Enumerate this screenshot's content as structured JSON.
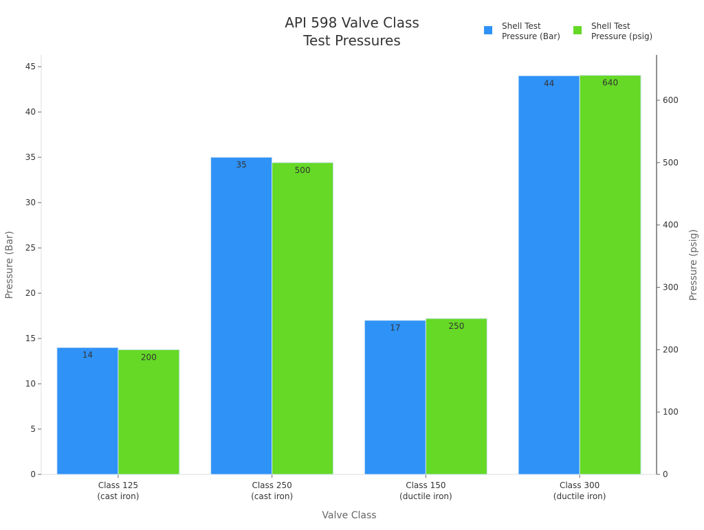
{
  "chart_data": {
    "type": "bar",
    "title": [
      "API 598 Valve Class",
      "Test Pressures"
    ],
    "xlabel": "Valve Class",
    "ylabel": "Pressure (Bar)",
    "y2label": "Pressure (psig)",
    "categories": [
      [
        "Class 125",
        "(cast iron)"
      ],
      [
        "Class 250",
        "(cast iron)"
      ],
      [
        "Class 150",
        "(ductile iron)"
      ],
      [
        "Class 300",
        "(ductile iron)"
      ]
    ],
    "series": [
      {
        "name": [
          "Shell Test",
          "Pressure (Bar)"
        ],
        "axis": "left",
        "color": "#2f92f7",
        "values": [
          14,
          35,
          17,
          44
        ]
      },
      {
        "name": [
          "Shell Test",
          "Pressure (psig)"
        ],
        "axis": "right",
        "color": "#65d926",
        "values": [
          200,
          500,
          250,
          640
        ]
      }
    ],
    "ylim": [
      0,
      46.3
    ],
    "y2lim": [
      0,
      672.7
    ],
    "yticks": [
      0,
      5,
      10,
      15,
      20,
      25,
      30,
      35,
      40,
      45
    ],
    "y2ticks": [
      0,
      100,
      200,
      300,
      400,
      500,
      600
    ],
    "grid": false,
    "legend": "top-right"
  }
}
